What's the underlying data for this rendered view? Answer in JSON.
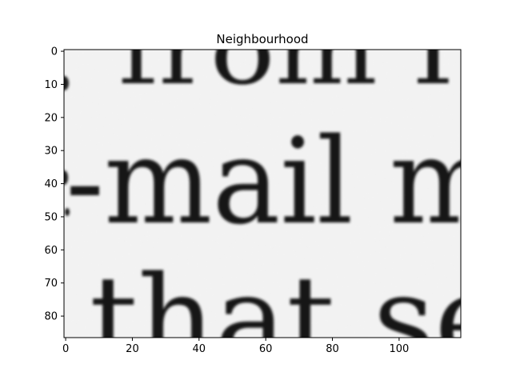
{
  "chart_data": {
    "type": "image",
    "title": "Neighbourhood",
    "xlabel": "",
    "ylabel": "",
    "xlim": [
      -0.5,
      118.5
    ],
    "ylim": [
      86.5,
      -0.5
    ],
    "xticks": [
      0,
      20,
      40,
      60,
      80,
      100
    ],
    "yticks": [
      0,
      10,
      20,
      30,
      40,
      50,
      60,
      70,
      80
    ],
    "colormap": "gray",
    "grid": false,
    "legend": null,
    "image_content": {
      "description": "Grayscale crop of scanned printed text",
      "text_lines": [
        {
          "text": "from I",
          "cropped": "top",
          "baseline_y": 10
        },
        {
          "text": "-mail m",
          "cropped": "right",
          "baseline_y": 51
        },
        {
          "text": "that se",
          "cropped": "bottom",
          "baseline_y": 92
        }
      ]
    }
  }
}
